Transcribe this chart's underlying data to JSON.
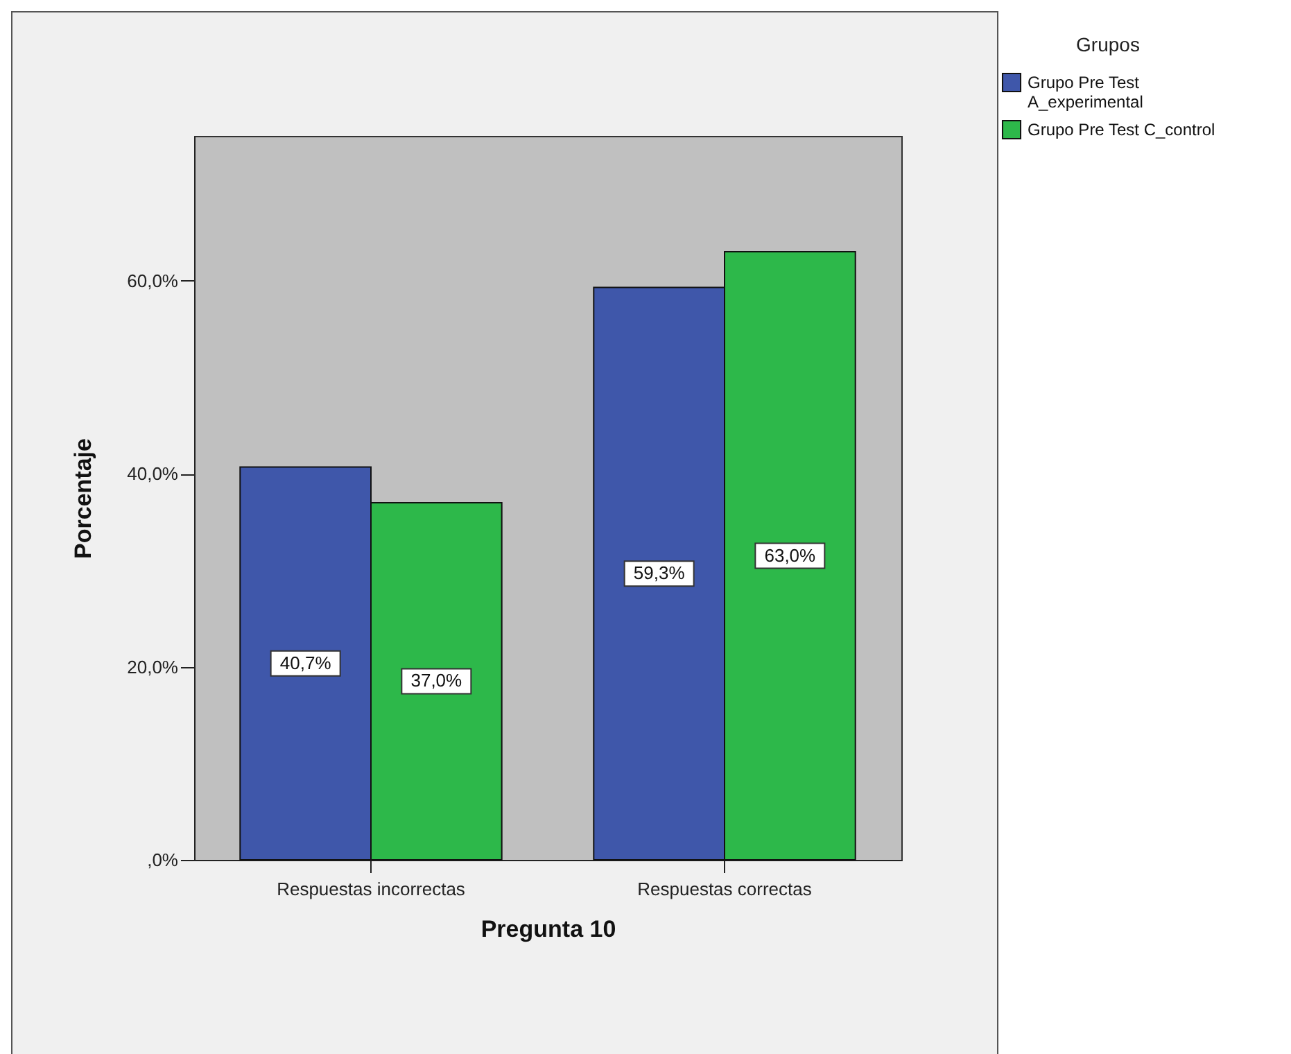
{
  "chart_data": {
    "type": "bar",
    "xlabel": "Pregunta 10",
    "ylabel": "Porcentaje",
    "legend_title": "Grupos",
    "legend": "top right",
    "categories": [
      "Respuestas incorrectas",
      "Respuestas correctas"
    ],
    "series": [
      {
        "name": "Grupo Pre Test A_experimental",
        "color": "#3f57aa",
        "values": [
          40.7,
          59.3
        ],
        "value_labels": [
          "40,7%",
          "59,3%"
        ]
      },
      {
        "name": "Grupo Pre Test C_control",
        "color": "#2db84a",
        "values": [
          37.0,
          63.0
        ],
        "value_labels": [
          "37,0%",
          "63,0%"
        ]
      }
    ],
    "ylim": [
      0,
      75
    ],
    "yticks": [
      {
        "value": 0,
        "label": ",0%"
      },
      {
        "value": 20,
        "label": "20,0%"
      },
      {
        "value": 40,
        "label": "40,0%"
      },
      {
        "value": 60,
        "label": "60,0%"
      }
    ]
  }
}
